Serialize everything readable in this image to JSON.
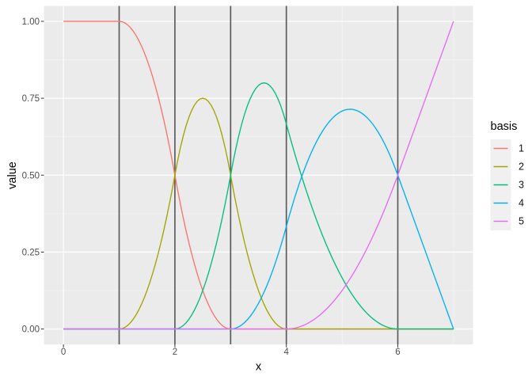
{
  "chart_data": {
    "type": "line",
    "title": "",
    "xlabel": "x",
    "ylabel": "value",
    "xlim": [
      -0.35,
      7.35
    ],
    "ylim": [
      -0.05,
      1.05
    ],
    "x_axis": {
      "major_ticks": [
        0,
        2,
        4,
        6
      ],
      "major_labels": [
        "0",
        "2",
        "4",
        "6"
      ],
      "minor_ticks": [
        1,
        3,
        5,
        7
      ]
    },
    "y_axis": {
      "major_ticks": [
        0,
        0.25,
        0.5,
        0.75,
        1
      ],
      "major_labels": [
        "0.00",
        "0.25",
        "0.50",
        "0.75",
        "1.00"
      ],
      "minor_ticks": [
        0.125,
        0.375,
        0.625,
        0.875
      ]
    },
    "knot_vlines": [
      1,
      2,
      3,
      4,
      6
    ],
    "grid": "on",
    "legend": {
      "title": "basis",
      "position": "right",
      "labels": [
        "1",
        "2",
        "3",
        "4",
        "5"
      ]
    },
    "samples_x": [
      0,
      0.5,
      1,
      1.5,
      2,
      2.5,
      3,
      3.5,
      4,
      4.5,
      5,
      5.5,
      6,
      6.5,
      7
    ],
    "series": [
      {
        "name": "1",
        "color": "#F8766D",
        "samples": [
          1,
          1,
          1,
          0.875,
          0.5,
          0.125,
          0,
          0,
          0,
          0,
          0,
          0,
          0,
          0,
          0
        ],
        "pieces": [
          {
            "from": 0,
            "to": 1,
            "poly": [
              1,
              0,
              0
            ]
          },
          {
            "from": 1,
            "to": 2,
            "poly": [
              1,
              0,
              -0.5
            ]
          },
          {
            "from": 2,
            "to": 3,
            "poly": [
              0.5,
              -1,
              0.5
            ]
          },
          {
            "from": 3,
            "to": 7,
            "poly": [
              0,
              0,
              0
            ]
          }
        ]
      },
      {
        "name": "2",
        "color": "#A3A500",
        "samples": [
          0,
          0,
          0,
          0.125,
          0.5,
          0.75,
          0.5,
          0.125,
          0,
          0,
          0,
          0,
          0,
          0,
          0
        ],
        "pieces": [
          {
            "from": 0,
            "to": 1,
            "poly": [
              0,
              0,
              0
            ]
          },
          {
            "from": 1,
            "to": 2,
            "poly": [
              0,
              0,
              0.5
            ]
          },
          {
            "from": 2,
            "to": 3,
            "poly": [
              0.5,
              1,
              -1
            ]
          },
          {
            "from": 3,
            "to": 4,
            "poly": [
              0.5,
              -1,
              0.5
            ]
          },
          {
            "from": 4,
            "to": 7,
            "poly": [
              0,
              0,
              0
            ]
          }
        ]
      },
      {
        "name": "3",
        "color": "#00BF7D",
        "samples": [
          0,
          0,
          0,
          0,
          0,
          0.125,
          0.5,
          0.792,
          0.667,
          0.375,
          0.167,
          0.042,
          0,
          0,
          0
        ],
        "pieces": [
          {
            "from": 0,
            "to": 2,
            "poly": [
              0,
              0,
              0
            ]
          },
          {
            "from": 2,
            "to": 3,
            "poly": [
              0,
              0,
              0.5
            ]
          },
          {
            "from": 3,
            "to": 4,
            "poly": [
              0.5,
              1,
              -0.833333
            ]
          },
          {
            "from": 4,
            "to": 6,
            "poly": [
              0.666667,
              -0.666667,
              0.166667
            ]
          },
          {
            "from": 6,
            "to": 7,
            "poly": [
              0,
              0,
              0
            ]
          }
        ]
      },
      {
        "name": "4",
        "color": "#00B0F6",
        "samples": [
          0,
          0,
          0,
          0,
          0,
          0,
          0,
          0.083,
          0.333,
          0.594,
          0.708,
          0.677,
          0.5,
          0.25,
          0
        ],
        "pieces": [
          {
            "from": 0,
            "to": 3,
            "poly": [
              0,
              0,
              0
            ]
          },
          {
            "from": 3,
            "to": 4,
            "poly": [
              0,
              0,
              0.333333
            ]
          },
          {
            "from": 4,
            "to": 6,
            "poly": [
              0.333333,
              0.666667,
              -0.291667
            ]
          },
          {
            "from": 6,
            "to": 7,
            "poly": [
              0.5,
              -0.5,
              0
            ]
          }
        ]
      },
      {
        "name": "5",
        "color": "#E76BF3",
        "samples": [
          0,
          0,
          0,
          0,
          0,
          0,
          0,
          0,
          0,
          0.031,
          0.125,
          0.281,
          0.5,
          0.75,
          1
        ],
        "pieces": [
          {
            "from": 0,
            "to": 4,
            "poly": [
              0,
              0,
              0
            ]
          },
          {
            "from": 4,
            "to": 6,
            "poly": [
              0,
              0,
              0.125
            ]
          },
          {
            "from": 6,
            "to": 7,
            "poly": [
              0.5,
              0.5,
              0
            ]
          }
        ]
      }
    ]
  },
  "style": {
    "panel_bg": "#EBEBEB",
    "grid_major": "#FFFFFF",
    "grid_minor": "#F5F5F5",
    "vline_color": "#5C5C5C",
    "tick_mark_color": "#333333",
    "tick_label_color": "#4D4D4D",
    "axis_title_color": "#000000",
    "legend_key_bg": "#F0F0F0",
    "legend_text_color": "#111111",
    "background": "#FFFFFF"
  }
}
